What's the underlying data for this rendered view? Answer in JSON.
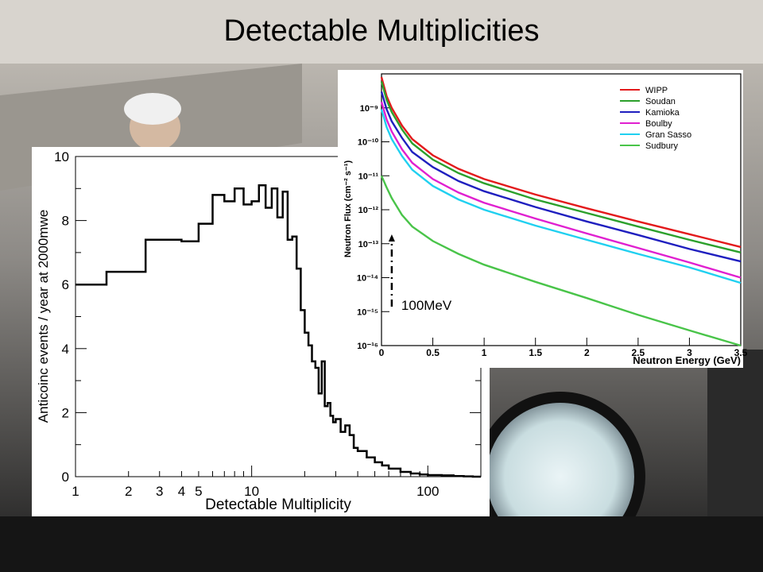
{
  "slide": {
    "title": "Detectable Multiplicities"
  },
  "chart_data": [
    {
      "type": "step",
      "title": "",
      "xlabel": "Detectable Multiplicity",
      "ylabel": "Anticoinc events / year at 2000mwe",
      "xscale": "log",
      "xlim": [
        1,
        200
      ],
      "ylim": [
        0,
        10
      ],
      "xticklabels": [
        "1",
        "2",
        "3",
        "4",
        "5",
        "10",
        "100"
      ],
      "xtickvalues": [
        1,
        2,
        3,
        4,
        5,
        10,
        100
      ],
      "yticklabels": [
        "0",
        "2",
        "4",
        "6",
        "8",
        "10"
      ],
      "ytickvalues": [
        0,
        2,
        4,
        6,
        8,
        10
      ],
      "grid": false,
      "x": [
        1,
        1.5,
        2,
        2.5,
        3,
        3.5,
        4,
        4.5,
        5,
        6,
        7,
        8,
        9,
        10,
        11,
        12,
        13,
        14,
        15,
        16,
        17,
        18,
        19,
        20,
        21,
        22,
        23,
        24,
        25,
        26,
        27,
        28,
        29,
        30,
        32,
        34,
        36,
        38,
        40,
        45,
        50,
        55,
        60,
        70,
        80,
        90,
        100,
        120,
        140,
        160,
        180
      ],
      "values": [
        6.0,
        6.4,
        6.4,
        7.4,
        7.4,
        7.4,
        7.35,
        7.35,
        7.9,
        8.8,
        8.6,
        9.0,
        8.5,
        8.6,
        9.1,
        8.4,
        9.0,
        8.1,
        8.9,
        7.4,
        7.5,
        6.5,
        5.2,
        4.5,
        4.1,
        3.6,
        3.4,
        2.6,
        3.6,
        2.2,
        2.3,
        1.9,
        1.7,
        1.8,
        1.4,
        1.6,
        1.3,
        0.9,
        0.8,
        0.6,
        0.45,
        0.35,
        0.25,
        0.15,
        0.1,
        0.07,
        0.05,
        0.04,
        0.02,
        0.01,
        0.0
      ]
    },
    {
      "type": "line",
      "title": "",
      "xlabel": "Neutron Energy (GeV)",
      "ylabel": "Neutron Flux (cm⁻² s⁻¹)",
      "yscale": "log",
      "xlim": [
        0,
        3.5
      ],
      "ylim": [
        1e-16,
        1e-08
      ],
      "xticklabels": [
        "0",
        "0.5",
        "1",
        "1.5",
        "2",
        "2.5",
        "3",
        "3.5"
      ],
      "xtickvalues": [
        0,
        0.5,
        1,
        1.5,
        2,
        2.5,
        3,
        3.5
      ],
      "yticklabels": [
        "10⁻⁹",
        "10⁻¹⁰",
        "10⁻¹¹",
        "10⁻¹²",
        "10⁻¹³",
        "10⁻¹⁴",
        "10⁻¹⁵",
        "10⁻¹⁶"
      ],
      "ytickexponents": [
        -9,
        -10,
        -11,
        -12,
        -13,
        -14,
        -15,
        -16
      ],
      "legend_position": "top-right",
      "grid": false,
      "x": [
        0.0,
        0.05,
        0.1,
        0.2,
        0.3,
        0.5,
        0.75,
        1.0,
        1.5,
        2.0,
        2.5,
        3.0,
        3.5
      ],
      "series": [
        {
          "name": "WIPP",
          "color": "#e31a1c",
          "values": [
            8e-09,
            2.2e-09,
            1e-09,
            3e-10,
            1.2e-10,
            4e-11,
            1.6e-11,
            8e-12,
            2.8e-12,
            1.1e-12,
            4.5e-13,
            1.9e-13,
            8e-14
          ]
        },
        {
          "name": "Soudan",
          "color": "#2ca02c",
          "values": [
            6e-09,
            1.7e-09,
            7.5e-10,
            2.3e-10,
            9e-11,
            3e-11,
            1.2e-11,
            6e-12,
            2e-12,
            8e-13,
            3.2e-13,
            1.3e-13,
            5.5e-14
          ]
        },
        {
          "name": "Kamioka",
          "color": "#1f1fbf",
          "values": [
            3e-09,
            9e-10,
            4e-10,
            1.3e-10,
            5e-11,
            1.8e-11,
            7e-12,
            3.5e-12,
            1.2e-12,
            4.5e-13,
            1.8e-13,
            7e-14,
            3e-14
          ]
        },
        {
          "name": "Boulby",
          "color": "#e020d0",
          "values": [
            1.5e-09,
            4.5e-10,
            2e-10,
            6e-11,
            2.4e-11,
            8e-12,
            3.2e-12,
            1.6e-12,
            5.5e-13,
            2e-13,
            7.5e-14,
            2.8e-14,
            1e-14
          ]
        },
        {
          "name": "Gran Sasso",
          "color": "#20d0f0",
          "values": [
            9e-10,
            2.7e-10,
            1.2e-10,
            3.8e-11,
            1.5e-11,
            5e-12,
            2e-12,
            1e-12,
            3.4e-13,
            1.3e-13,
            5e-14,
            2e-14,
            7e-15
          ]
        },
        {
          "name": "Sudbury",
          "color": "#49c449",
          "values": [
            1e-11,
            4.5e-12,
            2.2e-12,
            7e-13,
            3.2e-13,
            1.2e-13,
            5e-14,
            2.4e-14,
            7.5e-15,
            2.5e-15,
            8e-16,
            2.8e-16,
            1e-16
          ]
        }
      ],
      "annotations": [
        {
          "text": "100MeV",
          "x": 0.1
        }
      ]
    }
  ]
}
